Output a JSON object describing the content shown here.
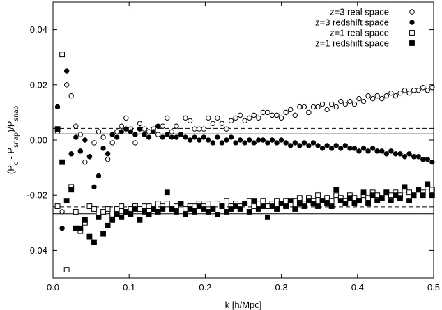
{
  "chart_data": {
    "type": "scatter",
    "title": "",
    "xlabel": "k [h/Mpc]",
    "ylabel": "(P_c - P_snap)/P_snap",
    "xlim": [
      0.0,
      0.5
    ],
    "ylim": [
      -0.05,
      0.05
    ],
    "x_ticks": [
      0.0,
      0.1,
      0.2,
      0.3,
      0.4,
      0.5
    ],
    "x_tick_labels": [
      "0.0",
      "0.1",
      "0.2",
      "0.3",
      "0.4",
      "0.5"
    ],
    "y_ticks": [
      -0.04,
      -0.02,
      0.0,
      0.02,
      0.04
    ],
    "y_tick_labels": [
      "-0.04",
      "-0.02",
      "0.00",
      "0.02",
      "0.04"
    ],
    "grid": false,
    "legend_position": "top-right",
    "reference_lines": [
      {
        "y": 0.0022,
        "style": "solid"
      },
      {
        "y": 0.0042,
        "style": "dashed"
      },
      {
        "y": -0.0267,
        "style": "solid"
      },
      {
        "y": -0.0242,
        "style": "dashed"
      }
    ],
    "series": [
      {
        "name": "z=3 real space",
        "marker": "open-circle",
        "x": [
          0.006,
          0.012,
          0.018,
          0.024,
          0.03,
          0.036,
          0.042,
          0.048,
          0.054,
          0.06,
          0.066,
          0.072,
          0.078,
          0.084,
          0.09,
          0.096,
          0.102,
          0.108,
          0.114,
          0.12,
          0.126,
          0.132,
          0.138,
          0.144,
          0.15,
          0.156,
          0.162,
          0.168,
          0.174,
          0.18,
          0.186,
          0.192,
          0.198,
          0.204,
          0.21,
          0.216,
          0.222,
          0.228,
          0.234,
          0.24,
          0.246,
          0.252,
          0.258,
          0.264,
          0.27,
          0.276,
          0.282,
          0.288,
          0.294,
          0.3,
          0.306,
          0.312,
          0.318,
          0.324,
          0.33,
          0.336,
          0.342,
          0.348,
          0.354,
          0.36,
          0.366,
          0.372,
          0.378,
          0.384,
          0.39,
          0.396,
          0.402,
          0.408,
          0.414,
          0.42,
          0.426,
          0.432,
          0.438,
          0.444,
          0.45,
          0.456,
          0.462,
          0.468,
          0.474,
          0.48,
          0.486,
          0.492,
          0.498
        ],
        "y": [
          0.003,
          -0.026,
          0.02,
          0.016,
          0.005,
          0.002,
          -0.008,
          -0.006,
          -0.001,
          0.003,
          0.001,
          -0.007,
          -0.001,
          0.003,
          0.005,
          0.008,
          0.004,
          -0.001,
          0.006,
          0.004,
          0.003,
          0.004,
          0.002,
          0.005,
          0.008,
          0.003,
          0.005,
          0.002,
          0.008,
          0.007,
          0.004,
          0.004,
          0.004,
          0.008,
          0.006,
          0.008,
          0.006,
          0.004,
          0.007,
          0.008,
          0.009,
          0.007,
          0.008,
          0.009,
          0.008,
          0.01,
          0.01,
          0.009,
          0.009,
          0.008,
          0.01,
          0.011,
          0.009,
          0.012,
          0.012,
          0.01,
          0.012,
          0.012,
          0.013,
          0.011,
          0.013,
          0.012,
          0.014,
          0.013,
          0.014,
          0.013,
          0.015,
          0.014,
          0.016,
          0.015,
          0.016,
          0.015,
          0.016,
          0.017,
          0.016,
          0.017,
          0.018,
          0.017,
          0.018,
          0.018,
          0.019,
          0.018,
          0.019
        ]
      },
      {
        "name": "z=3 redshift space",
        "marker": "filled-circle",
        "x": [
          0.006,
          0.012,
          0.018,
          0.024,
          0.03,
          0.036,
          0.042,
          0.048,
          0.054,
          0.06,
          0.066,
          0.072,
          0.078,
          0.084,
          0.09,
          0.096,
          0.102,
          0.108,
          0.114,
          0.12,
          0.126,
          0.132,
          0.138,
          0.144,
          0.15,
          0.156,
          0.162,
          0.168,
          0.174,
          0.18,
          0.186,
          0.192,
          0.198,
          0.204,
          0.21,
          0.216,
          0.222,
          0.228,
          0.234,
          0.24,
          0.246,
          0.252,
          0.258,
          0.264,
          0.27,
          0.276,
          0.282,
          0.288,
          0.294,
          0.3,
          0.306,
          0.312,
          0.318,
          0.324,
          0.33,
          0.336,
          0.342,
          0.348,
          0.354,
          0.36,
          0.366,
          0.372,
          0.378,
          0.384,
          0.39,
          0.396,
          0.402,
          0.408,
          0.414,
          0.42,
          0.426,
          0.432,
          0.438,
          0.444,
          0.45,
          0.456,
          0.462,
          0.468,
          0.474,
          0.48,
          0.486,
          0.492,
          0.498
        ],
        "y": [
          0.012,
          -0.032,
          0.025,
          -0.005,
          0.001,
          -0.004,
          0.0,
          -0.006,
          -0.017,
          -0.013,
          -0.003,
          -0.005,
          0.002,
          0.001,
          0.003,
          0.004,
          0.003,
          0.002,
          0.004,
          0.002,
          0.001,
          0.003,
          0.005,
          0.001,
          0.002,
          0.001,
          0.001,
          0.002,
          0.001,
          0.0,
          0.001,
          0.0,
          0.001,
          0.0,
          -0.001,
          0.001,
          -0.001,
          0.0,
          0.001,
          -0.001,
          0.0,
          -0.001,
          0.0,
          -0.001,
          0.0,
          0.0,
          -0.001,
          0.0,
          -0.001,
          0.0,
          -0.001,
          -0.002,
          -0.001,
          -0.002,
          -0.001,
          -0.002,
          -0.001,
          -0.002,
          -0.003,
          -0.002,
          -0.003,
          -0.002,
          -0.003,
          -0.002,
          -0.003,
          -0.003,
          -0.004,
          -0.003,
          -0.004,
          -0.003,
          -0.004,
          -0.004,
          -0.005,
          -0.004,
          -0.005,
          -0.005,
          -0.006,
          -0.005,
          -0.006,
          -0.006,
          -0.007,
          -0.007,
          -0.008
        ]
      },
      {
        "name": "z=1 real space",
        "marker": "open-square",
        "x": [
          0.006,
          0.012,
          0.018,
          0.024,
          0.03,
          0.036,
          0.042,
          0.048,
          0.054,
          0.06,
          0.066,
          0.072,
          0.078,
          0.084,
          0.09,
          0.096,
          0.102,
          0.108,
          0.114,
          0.12,
          0.126,
          0.132,
          0.138,
          0.144,
          0.15,
          0.156,
          0.162,
          0.168,
          0.174,
          0.18,
          0.186,
          0.192,
          0.198,
          0.204,
          0.21,
          0.216,
          0.222,
          0.228,
          0.234,
          0.24,
          0.246,
          0.252,
          0.258,
          0.264,
          0.27,
          0.276,
          0.282,
          0.288,
          0.294,
          0.3,
          0.306,
          0.312,
          0.318,
          0.324,
          0.33,
          0.336,
          0.342,
          0.348,
          0.354,
          0.36,
          0.366,
          0.372,
          0.378,
          0.384,
          0.39,
          0.396,
          0.402,
          0.408,
          0.414,
          0.42,
          0.426,
          0.432,
          0.438,
          0.444,
          0.45,
          0.456,
          0.462,
          0.468,
          0.474,
          0.48,
          0.486,
          0.492,
          0.498
        ],
        "y": [
          -0.024,
          0.031,
          -0.047,
          -0.017,
          -0.026,
          -0.033,
          -0.03,
          -0.024,
          -0.025,
          -0.027,
          -0.026,
          -0.025,
          -0.027,
          -0.025,
          -0.024,
          -0.026,
          -0.025,
          -0.024,
          -0.025,
          -0.024,
          -0.024,
          -0.025,
          -0.023,
          -0.024,
          -0.023,
          -0.025,
          -0.024,
          -0.023,
          -0.025,
          -0.024,
          -0.024,
          -0.023,
          -0.024,
          -0.023,
          -0.025,
          -0.023,
          -0.024,
          -0.022,
          -0.024,
          -0.023,
          -0.024,
          -0.023,
          -0.022,
          -0.024,
          -0.023,
          -0.022,
          -0.024,
          -0.023,
          -0.022,
          -0.023,
          -0.022,
          -0.023,
          -0.022,
          -0.021,
          -0.023,
          -0.021,
          -0.022,
          -0.02,
          -0.022,
          -0.021,
          -0.022,
          -0.02,
          -0.021,
          -0.022,
          -0.02,
          -0.021,
          -0.022,
          -0.02,
          -0.021,
          -0.019,
          -0.02,
          -0.021,
          -0.019,
          -0.02,
          -0.019,
          -0.02,
          -0.018,
          -0.019,
          -0.02,
          -0.018,
          -0.019,
          -0.017,
          -0.018
        ]
      },
      {
        "name": "z=1 redshift space",
        "marker": "filled-square",
        "x": [
          0.006,
          0.012,
          0.018,
          0.024,
          0.03,
          0.036,
          0.042,
          0.048,
          0.054,
          0.06,
          0.066,
          0.072,
          0.078,
          0.084,
          0.09,
          0.096,
          0.102,
          0.108,
          0.114,
          0.12,
          0.126,
          0.132,
          0.138,
          0.144,
          0.15,
          0.156,
          0.162,
          0.168,
          0.174,
          0.18,
          0.186,
          0.192,
          0.198,
          0.204,
          0.21,
          0.216,
          0.222,
          0.228,
          0.234,
          0.24,
          0.246,
          0.252,
          0.258,
          0.264,
          0.27,
          0.276,
          0.282,
          0.288,
          0.294,
          0.3,
          0.306,
          0.312,
          0.318,
          0.324,
          0.33,
          0.336,
          0.342,
          0.348,
          0.354,
          0.36,
          0.366,
          0.372,
          0.378,
          0.384,
          0.39,
          0.396,
          0.402,
          0.408,
          0.414,
          0.42,
          0.426,
          0.432,
          0.438,
          0.444,
          0.45,
          0.456,
          0.462,
          0.468,
          0.474,
          0.48,
          0.486,
          0.492,
          0.498
        ],
        "y": [
          0.004,
          -0.008,
          -0.022,
          -0.018,
          -0.032,
          -0.032,
          -0.029,
          -0.035,
          -0.037,
          -0.028,
          -0.034,
          -0.031,
          -0.029,
          -0.027,
          -0.028,
          -0.026,
          -0.027,
          -0.025,
          -0.029,
          -0.026,
          -0.027,
          -0.025,
          -0.026,
          -0.025,
          -0.019,
          -0.025,
          -0.026,
          -0.023,
          -0.027,
          -0.025,
          -0.026,
          -0.024,
          -0.025,
          -0.026,
          -0.025,
          -0.027,
          -0.024,
          -0.026,
          -0.025,
          -0.024,
          -0.025,
          -0.023,
          -0.026,
          -0.022,
          -0.025,
          -0.024,
          -0.028,
          -0.024,
          -0.025,
          -0.023,
          -0.024,
          -0.022,
          -0.025,
          -0.023,
          -0.024,
          -0.022,
          -0.023,
          -0.024,
          -0.022,
          -0.023,
          -0.024,
          -0.018,
          -0.022,
          -0.023,
          -0.021,
          -0.023,
          -0.022,
          -0.019,
          -0.023,
          -0.02,
          -0.022,
          -0.021,
          -0.019,
          -0.022,
          -0.02,
          -0.021,
          -0.017,
          -0.022,
          -0.02,
          -0.018,
          -0.02,
          -0.016,
          -0.02
        ]
      }
    ]
  }
}
